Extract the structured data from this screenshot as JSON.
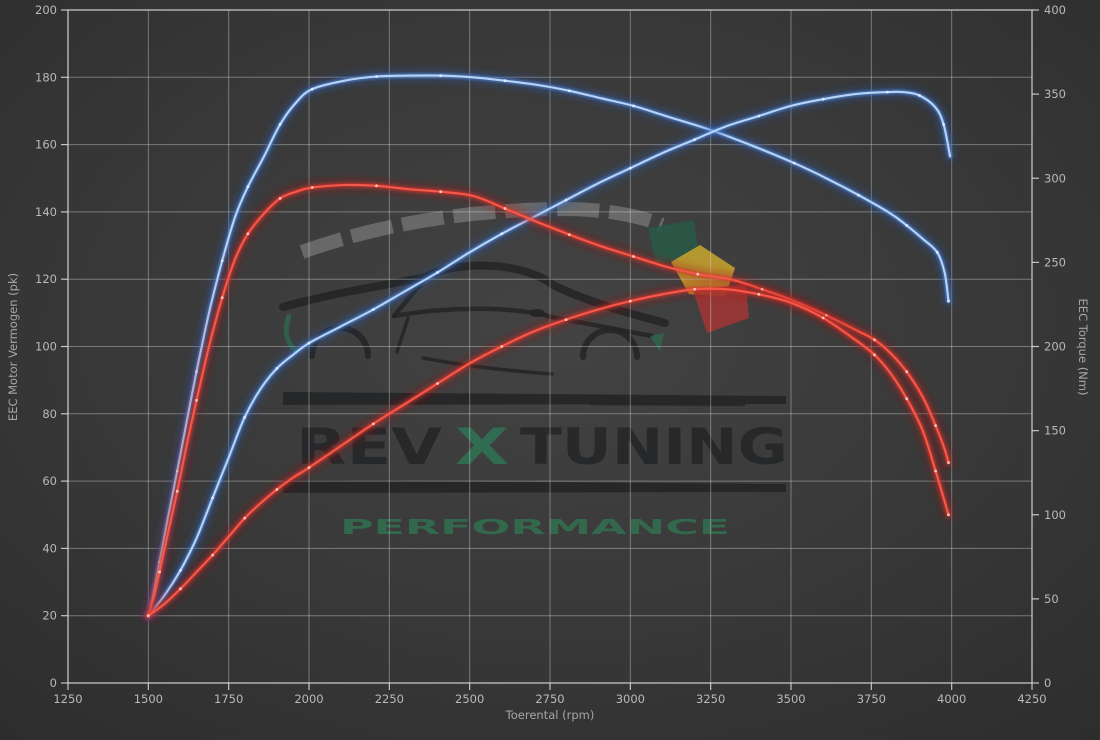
{
  "chart_data": {
    "type": "line",
    "xlabel": "Toerental (rpm)",
    "ylabel_left": "EEC Motor Vermogen (pk)",
    "ylabel_right": "EEC Torque (Nm)",
    "x_range": [
      1250,
      4250
    ],
    "x_ticks": [
      1250,
      1500,
      1750,
      2000,
      2250,
      2500,
      2750,
      3000,
      3250,
      3500,
      3750,
      4000,
      4250
    ],
    "y_left_range": [
      0,
      200
    ],
    "y_left_ticks": [
      0,
      20,
      40,
      60,
      80,
      100,
      120,
      140,
      160,
      180,
      200
    ],
    "y_right_range": [
      0,
      400
    ],
    "y_right_ticks": [
      0,
      50,
      100,
      150,
      200,
      250,
      300,
      350,
      400
    ],
    "grid": true,
    "legend": false,
    "series": [
      {
        "name": "torque-blue",
        "axis": "right",
        "unit": "Nm",
        "color_glow": "#2257b0",
        "color_mid": "#4f8bdd",
        "color_core": "#b7d3f5",
        "color_marker": "#e4efff",
        "points": [
          [
            1500,
            40
          ],
          [
            1515,
            52
          ],
          [
            1535,
            72
          ],
          [
            1560,
            97
          ],
          [
            1590,
            126
          ],
          [
            1620,
            156
          ],
          [
            1650,
            185
          ],
          [
            1690,
            221
          ],
          [
            1730,
            251
          ],
          [
            1770,
            277
          ],
          [
            1810,
            295
          ],
          [
            1860,
            313
          ],
          [
            1910,
            332
          ],
          [
            1960,
            345
          ],
          [
            2010,
            353
          ],
          [
            2110,
            358
          ],
          [
            2210,
            360.5
          ],
          [
            2310,
            361
          ],
          [
            2410,
            361
          ],
          [
            2510,
            360
          ],
          [
            2610,
            358
          ],
          [
            2710,
            355.5
          ],
          [
            2810,
            352
          ],
          [
            2910,
            347.5
          ],
          [
            3010,
            343
          ],
          [
            3110,
            337
          ],
          [
            3260,
            328
          ],
          [
            3410,
            317
          ],
          [
            3510,
            309
          ],
          [
            3610,
            300
          ],
          [
            3710,
            290
          ],
          [
            3810,
            279
          ],
          [
            3860,
            272
          ],
          [
            3910,
            264
          ],
          [
            3955,
            256
          ],
          [
            3978,
            244
          ],
          [
            3990,
            227
          ]
        ]
      },
      {
        "name": "power-blue",
        "axis": "left",
        "unit": "pk",
        "color_glow": "#2257b0",
        "color_mid": "#4f8bdd",
        "color_core": "#b7d3f5",
        "color_marker": "#e4efff",
        "points": [
          [
            1500,
            20
          ],
          [
            1550,
            26
          ],
          [
            1600,
            33.5
          ],
          [
            1650,
            43
          ],
          [
            1700,
            55
          ],
          [
            1750,
            67
          ],
          [
            1800,
            79
          ],
          [
            1850,
            87.5
          ],
          [
            1900,
            93.5
          ],
          [
            1950,
            97.5
          ],
          [
            2000,
            101
          ],
          [
            2100,
            106
          ],
          [
            2200,
            111
          ],
          [
            2300,
            116.5
          ],
          [
            2400,
            122
          ],
          [
            2500,
            128
          ],
          [
            2600,
            133.5
          ],
          [
            2700,
            138.5
          ],
          [
            2800,
            143.5
          ],
          [
            2900,
            148.5
          ],
          [
            3000,
            153
          ],
          [
            3100,
            157.5
          ],
          [
            3200,
            161.5
          ],
          [
            3300,
            165.5
          ],
          [
            3400,
            168.5
          ],
          [
            3500,
            171.5
          ],
          [
            3600,
            173.5
          ],
          [
            3700,
            175
          ],
          [
            3800,
            175.6
          ],
          [
            3850,
            175.6
          ],
          [
            3900,
            174.6
          ],
          [
            3950,
            171
          ],
          [
            3975,
            166
          ],
          [
            3995,
            156.5
          ]
        ]
      },
      {
        "name": "torque-red",
        "axis": "right",
        "unit": "Nm",
        "color_glow": "#a81414",
        "color_mid": "#dd3228",
        "color_core": "#f4594b",
        "color_marker": "#ffd2c6",
        "points": [
          [
            1500,
            40
          ],
          [
            1515,
            50
          ],
          [
            1535,
            66
          ],
          [
            1560,
            88
          ],
          [
            1590,
            114
          ],
          [
            1620,
            142
          ],
          [
            1650,
            168
          ],
          [
            1690,
            201
          ],
          [
            1730,
            229
          ],
          [
            1770,
            252
          ],
          [
            1810,
            267
          ],
          [
            1860,
            279
          ],
          [
            1910,
            288
          ],
          [
            1960,
            292
          ],
          [
            2010,
            294.5
          ],
          [
            2110,
            296
          ],
          [
            2210,
            295.5
          ],
          [
            2310,
            293.5
          ],
          [
            2410,
            292
          ],
          [
            2510,
            289.5
          ],
          [
            2610,
            282
          ],
          [
            2710,
            274
          ],
          [
            2810,
            266.5
          ],
          [
            2910,
            259.5
          ],
          [
            3010,
            253.5
          ],
          [
            3110,
            247.5
          ],
          [
            3210,
            243
          ],
          [
            3310,
            240
          ],
          [
            3410,
            234
          ],
          [
            3510,
            227
          ],
          [
            3610,
            218.5
          ],
          [
            3710,
            209
          ],
          [
            3760,
            204
          ],
          [
            3810,
            196
          ],
          [
            3860,
            185
          ],
          [
            3910,
            170
          ],
          [
            3950,
            153
          ],
          [
            3978,
            139
          ],
          [
            3990,
            131
          ]
        ]
      },
      {
        "name": "power-red",
        "axis": "left",
        "unit": "pk",
        "color_glow": "#a81414",
        "color_mid": "#dd3228",
        "color_core": "#f4594b",
        "color_marker": "#ffd2c6",
        "points": [
          [
            1500,
            20
          ],
          [
            1550,
            23.5
          ],
          [
            1600,
            28
          ],
          [
            1650,
            33
          ],
          [
            1700,
            38
          ],
          [
            1750,
            43.5
          ],
          [
            1800,
            49
          ],
          [
            1850,
            53.5
          ],
          [
            1900,
            57.5
          ],
          [
            1950,
            61
          ],
          [
            2000,
            64
          ],
          [
            2100,
            70.5
          ],
          [
            2200,
            77
          ],
          [
            2300,
            83
          ],
          [
            2400,
            89
          ],
          [
            2500,
            95
          ],
          [
            2600,
            100
          ],
          [
            2700,
            104.5
          ],
          [
            2800,
            108
          ],
          [
            2900,
            111
          ],
          [
            3000,
            113.5
          ],
          [
            3100,
            115.5
          ],
          [
            3200,
            117
          ],
          [
            3300,
            117
          ],
          [
            3400,
            115.5
          ],
          [
            3500,
            113
          ],
          [
            3600,
            108.5
          ],
          [
            3700,
            102
          ],
          [
            3760,
            97.5
          ],
          [
            3810,
            92
          ],
          [
            3860,
            84.5
          ],
          [
            3910,
            75
          ],
          [
            3950,
            63
          ],
          [
            3978,
            54
          ],
          [
            3990,
            50
          ]
        ]
      }
    ]
  },
  "watermark": {
    "brand_rev": "REV",
    "brand_x": "X",
    "brand_tuning": "TUNING",
    "subtitle": "PERFORMANCE",
    "colors": {
      "text_dark": "#242628",
      "green": "#2f7354",
      "emblem_green": "#275c47",
      "emblem_yellow": "#c9a52e",
      "emblem_red": "#a93434",
      "gauge_gray": "#9a9a9a"
    }
  }
}
